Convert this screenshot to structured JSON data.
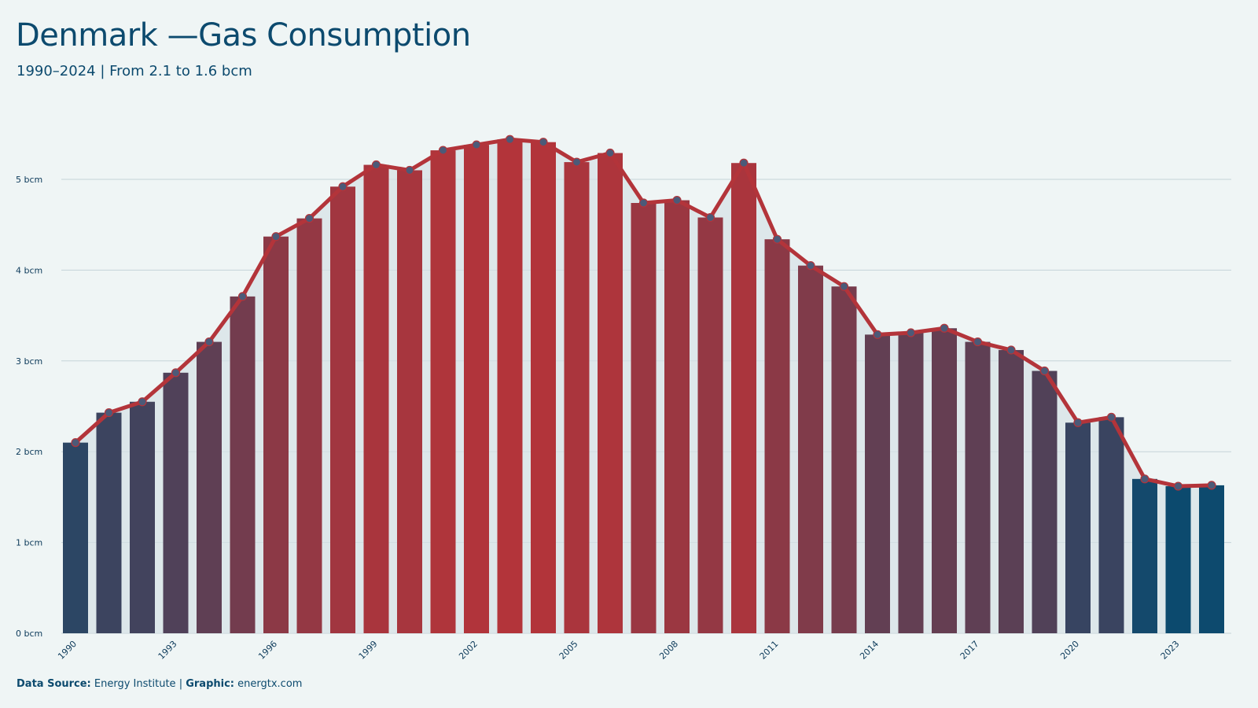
{
  "header": {
    "title": "Denmark —Gas Consumption",
    "subtitle": "1990–2024 | From 2.1 to 1.6 bcm"
  },
  "footer": {
    "source_label": "Data Source:",
    "source_value": "Energy Institute",
    "separator": "|",
    "graphic_label": "Graphic:",
    "graphic_value": "energtx.com"
  },
  "colors": {
    "background": "#eff5f5",
    "low": "#0c4a6e",
    "high": "#b3343a",
    "line": "#b3343a",
    "marker_fill": "#4c5a78",
    "area": "#d6e1e6",
    "grid": "#c5d4d8"
  },
  "chart_data": {
    "type": "bar",
    "title": "Denmark —Gas Consumption",
    "subtitle": "1990–2024 | From 2.1 to 1.6 bcm",
    "xlabel": "",
    "ylabel": "",
    "unit": "bcm",
    "categories": [
      "1990",
      "1991",
      "1992",
      "1993",
      "1994",
      "1995",
      "1996",
      "1997",
      "1998",
      "1999",
      "2000",
      "2001",
      "2002",
      "2003",
      "2004",
      "2005",
      "2006",
      "2007",
      "2008",
      "2009",
      "2010",
      "2011",
      "2012",
      "2013",
      "2014",
      "2015",
      "2016",
      "2017",
      "2018",
      "2019",
      "2020",
      "2021",
      "2022",
      "2023",
      "2024"
    ],
    "x_tick_labels": [
      "1990",
      "1993",
      "1996",
      "1999",
      "2002",
      "2005",
      "2008",
      "2011",
      "2014",
      "2017",
      "2020",
      "2023"
    ],
    "values": [
      2.1,
      2.43,
      2.55,
      2.87,
      3.21,
      3.71,
      4.37,
      4.57,
      4.92,
      5.16,
      5.1,
      5.32,
      5.38,
      5.44,
      5.41,
      5.19,
      5.29,
      4.74,
      4.77,
      4.58,
      5.18,
      4.34,
      4.05,
      3.82,
      3.29,
      3.31,
      3.36,
      3.21,
      3.12,
      2.89,
      2.32,
      2.38,
      1.7,
      1.62,
      1.63
    ],
    "y_ticks": [
      0,
      1,
      2,
      3,
      4,
      5
    ],
    "y_tick_labels": [
      "0 bcm",
      "1 bcm",
      "2 bcm",
      "3 bcm",
      "4 bcm",
      "5 bcm"
    ],
    "ylim": [
      0,
      5.9
    ],
    "grid": true,
    "overlay": "line with markers"
  }
}
